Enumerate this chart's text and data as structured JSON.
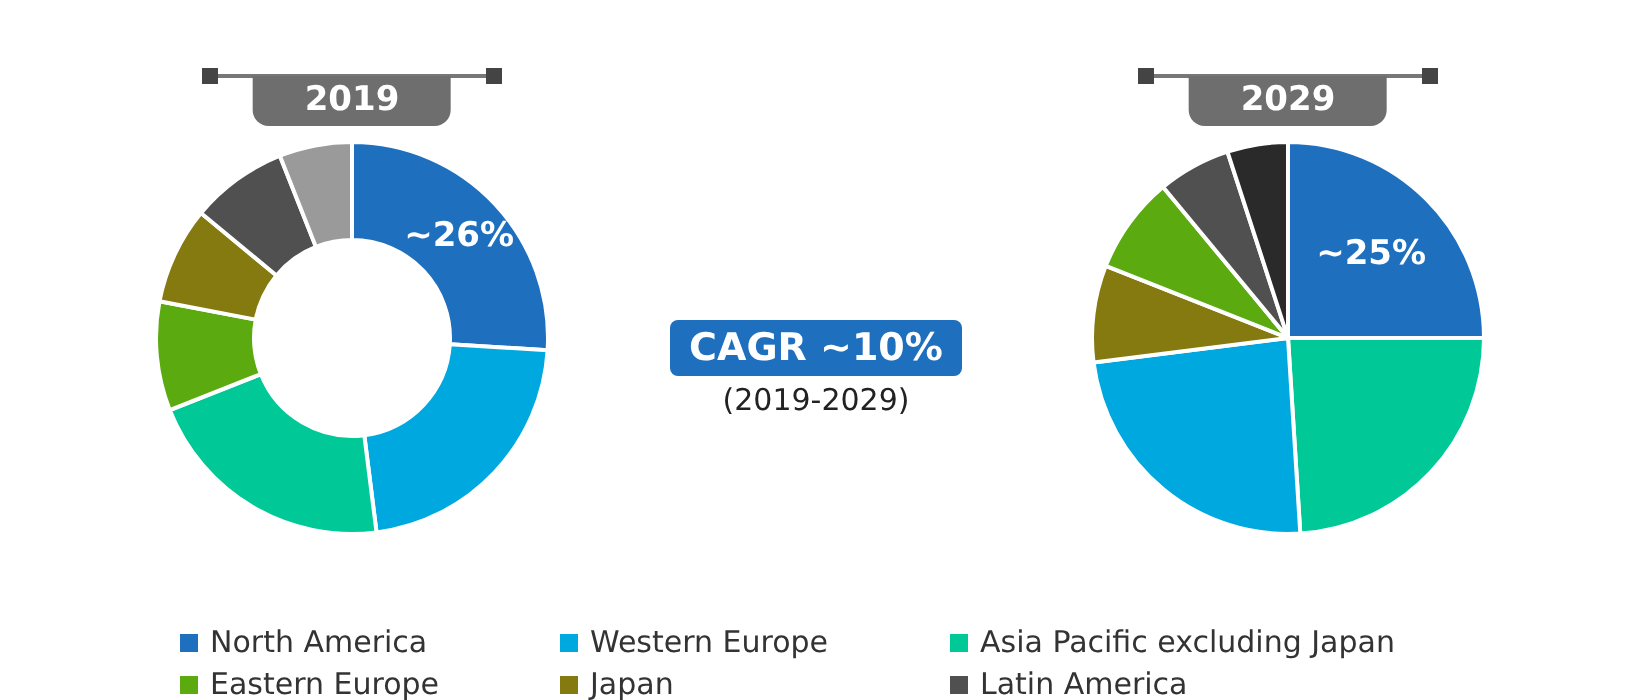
{
  "chart_data": [
    {
      "type": "donut",
      "title": "2019",
      "categories": [
        "North America",
        "Western Europe",
        "Asia Pacific excluding Japan",
        "Eastern Europe",
        "Japan",
        "Latin America",
        null
      ],
      "values": [
        26,
        22,
        21,
        9,
        8,
        8,
        6
      ],
      "colors": [
        "#1f6fbf",
        "#00a8e0",
        "#00c896",
        "#5aaa10",
        "#857a10",
        "#505050",
        "#9a9a9a"
      ],
      "value_labels": [
        "~26%",
        null,
        null,
        null,
        null,
        null,
        null
      ],
      "legend": "bottom"
    },
    {
      "type": "other",
      "title": "CAGR ~10%",
      "subtitle": "(2019-2029)"
    },
    {
      "type": "pie",
      "title": "2029",
      "categories": [
        null,
        null,
        null,
        null,
        null,
        null,
        null
      ],
      "values": [
        25,
        24,
        24,
        8,
        8,
        6,
        5
      ],
      "colors": [
        "#1f6fbf",
        "#00c896",
        "#00a8e0",
        "#857a10",
        "#5aaa10",
        "#505050",
        "#2a2a2a"
      ],
      "value_labels": [
        "~25%",
        null,
        null,
        null,
        null,
        null,
        null
      ]
    }
  ]
}
